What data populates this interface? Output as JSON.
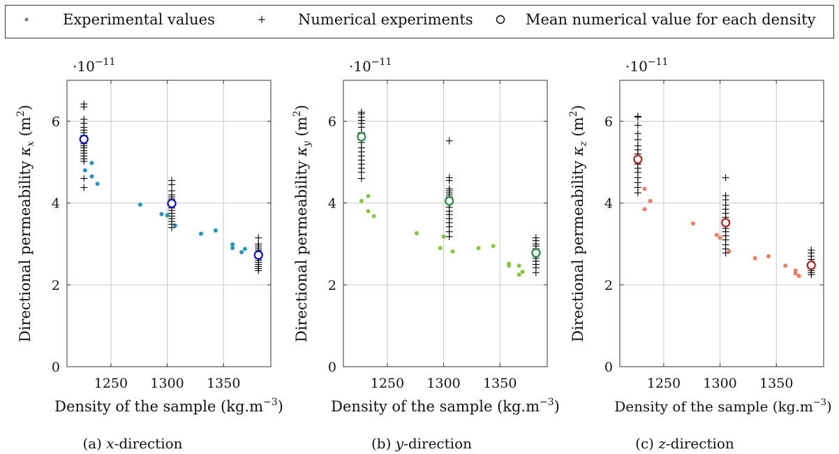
{
  "legend": {
    "experimental": "Experimental values",
    "numerical": "Numerical experiments",
    "mean": "Mean numerical value for each density"
  },
  "colors": {
    "frame": "#333333",
    "grid": "#c8c8c8",
    "numerical": "#000000",
    "legend_dot": "#808080"
  },
  "chart_data": [
    {
      "type": "scatter",
      "panel": "(a)",
      "caption_prefix": "(a) ",
      "caption_var": "x",
      "caption_suffix": "-direction",
      "ylabel_text": "Directional permeability ",
      "ylabel_var": "κ",
      "ylabel_sub": "x",
      "ylabel_unit_open": " (m",
      "ylabel_unit_exp": "2",
      "ylabel_unit_close": ")",
      "xlabel_text": "Density of the sample (kg.m",
      "xlabel_exp": "−3",
      "xlabel_close": ")",
      "scale_base": "·10",
      "scale_exp": "−11",
      "xlim": [
        1211,
        1392
      ],
      "ylim": [
        0,
        7
      ],
      "xticks": [
        1250,
        1300,
        1350
      ],
      "yticks": [
        0,
        2,
        4,
        6
      ],
      "grid": true,
      "exp_color": "#1e96c0",
      "mean_color": "#1010c8",
      "experimental": [
        [
          1227,
          4.8
        ],
        [
          1233,
          4.98
        ],
        [
          1233,
          4.65
        ],
        [
          1238,
          4.47
        ],
        [
          1276,
          3.96
        ],
        [
          1295,
          3.73
        ],
        [
          1300,
          3.7
        ],
        [
          1307,
          3.45
        ],
        [
          1330,
          3.25
        ],
        [
          1343,
          3.33
        ],
        [
          1358,
          2.99
        ],
        [
          1358,
          2.9
        ],
        [
          1366,
          2.8
        ],
        [
          1369,
          2.88
        ],
        [
          1382,
          2.8
        ],
        [
          1382,
          2.65
        ]
      ],
      "numerical": [
        [
          1226,
          6.42
        ],
        [
          1226,
          6.35
        ],
        [
          1226,
          6.05
        ],
        [
          1226,
          5.95
        ],
        [
          1226,
          5.85
        ],
        [
          1226,
          5.78
        ],
        [
          1226,
          5.72
        ],
        [
          1226,
          5.65
        ],
        [
          1226,
          5.6
        ],
        [
          1226,
          5.55
        ],
        [
          1226,
          5.5
        ],
        [
          1226,
          5.45
        ],
        [
          1226,
          5.4
        ],
        [
          1226,
          5.35
        ],
        [
          1226,
          5.28
        ],
        [
          1226,
          5.22
        ],
        [
          1226,
          5.15
        ],
        [
          1226,
          5.08
        ],
        [
          1226,
          5.02
        ],
        [
          1226,
          4.6
        ],
        [
          1226,
          4.38
        ],
        [
          1304,
          4.55
        ],
        [
          1304,
          4.45
        ],
        [
          1304,
          4.3
        ],
        [
          1304,
          4.2
        ],
        [
          1304,
          4.15
        ],
        [
          1304,
          4.1
        ],
        [
          1304,
          4.05
        ],
        [
          1304,
          4.0
        ],
        [
          1304,
          3.95
        ],
        [
          1304,
          3.88
        ],
        [
          1304,
          3.82
        ],
        [
          1304,
          3.75
        ],
        [
          1304,
          3.68
        ],
        [
          1304,
          3.62
        ],
        [
          1304,
          3.55
        ],
        [
          1304,
          3.48
        ],
        [
          1304,
          3.4
        ],
        [
          1381,
          3.15
        ],
        [
          1381,
          3.0
        ],
        [
          1381,
          2.95
        ],
        [
          1381,
          2.9
        ],
        [
          1381,
          2.85
        ],
        [
          1381,
          2.8
        ],
        [
          1381,
          2.75
        ],
        [
          1381,
          2.7
        ],
        [
          1381,
          2.65
        ],
        [
          1381,
          2.6
        ],
        [
          1381,
          2.55
        ],
        [
          1381,
          2.5
        ],
        [
          1381,
          2.45
        ],
        [
          1381,
          2.4
        ],
        [
          1381,
          2.35
        ]
      ],
      "means": [
        [
          1226,
          5.56
        ],
        [
          1304,
          3.99
        ],
        [
          1381,
          2.73
        ]
      ]
    },
    {
      "type": "scatter",
      "panel": "(b)",
      "caption_prefix": "(b) ",
      "caption_var": "y",
      "caption_suffix": "-direction",
      "ylabel_text": "Directional permeability ",
      "ylabel_var": "κ",
      "ylabel_sub": "y",
      "ylabel_unit_open": " (m",
      "ylabel_unit_exp": "2",
      "ylabel_unit_close": ")",
      "xlabel_text": "Density of the sample (kg.m",
      "xlabel_exp": "−3",
      "xlabel_close": ")",
      "scale_base": "·10",
      "scale_exp": "−11",
      "xlim": [
        1211,
        1392
      ],
      "ylim": [
        0,
        7
      ],
      "xticks": [
        1250,
        1300,
        1350
      ],
      "yticks": [
        0,
        2,
        4,
        6
      ],
      "grid": true,
      "exp_color": "#86c83c",
      "mean_color": "#1e8c3c",
      "experimental": [
        [
          1227,
          4.05
        ],
        [
          1233,
          4.17
        ],
        [
          1233,
          3.8
        ],
        [
          1238,
          3.68
        ],
        [
          1276,
          3.26
        ],
        [
          1297,
          2.9
        ],
        [
          1300,
          3.18
        ],
        [
          1308,
          2.82
        ],
        [
          1331,
          2.9
        ],
        [
          1344,
          2.95
        ],
        [
          1358,
          2.52
        ],
        [
          1358,
          2.47
        ],
        [
          1367,
          2.47
        ],
        [
          1367,
          2.25
        ],
        [
          1370,
          2.32
        ],
        [
          1382,
          2.79
        ]
      ],
      "numerical": [
        [
          1227,
          6.22
        ],
        [
          1227,
          6.18
        ],
        [
          1227,
          6.1
        ],
        [
          1227,
          6.02
        ],
        [
          1227,
          5.95
        ],
        [
          1227,
          5.85
        ],
        [
          1227,
          5.72
        ],
        [
          1227,
          5.6
        ],
        [
          1227,
          5.48
        ],
        [
          1227,
          5.35
        ],
        [
          1227,
          5.25
        ],
        [
          1227,
          5.15
        ],
        [
          1227,
          5.05
        ],
        [
          1227,
          4.95
        ],
        [
          1227,
          4.85
        ],
        [
          1227,
          4.75
        ],
        [
          1227,
          4.6
        ],
        [
          1305,
          5.52
        ],
        [
          1305,
          4.62
        ],
        [
          1305,
          4.55
        ],
        [
          1305,
          4.35
        ],
        [
          1305,
          4.3
        ],
        [
          1305,
          4.25
        ],
        [
          1305,
          4.2
        ],
        [
          1305,
          4.15
        ],
        [
          1305,
          4.08
        ],
        [
          1305,
          4.0
        ],
        [
          1305,
          3.9
        ],
        [
          1305,
          3.8
        ],
        [
          1305,
          3.72
        ],
        [
          1305,
          3.62
        ],
        [
          1305,
          3.52
        ],
        [
          1305,
          3.42
        ],
        [
          1305,
          3.3
        ],
        [
          1305,
          3.18
        ],
        [
          1382,
          3.15
        ],
        [
          1382,
          3.08
        ],
        [
          1382,
          3.0
        ],
        [
          1382,
          2.95
        ],
        [
          1382,
          2.88
        ],
        [
          1382,
          2.8
        ],
        [
          1382,
          2.72
        ],
        [
          1382,
          2.65
        ],
        [
          1382,
          2.58
        ],
        [
          1382,
          2.5
        ],
        [
          1382,
          2.42
        ],
        [
          1382,
          2.3
        ]
      ],
      "means": [
        [
          1227,
          5.62
        ],
        [
          1305,
          4.05
        ],
        [
          1382,
          2.78
        ]
      ]
    },
    {
      "type": "scatter",
      "panel": "(c)",
      "caption_prefix": "(c) ",
      "caption_var": "z",
      "caption_suffix": "-direction",
      "ylabel_text": "Directional permeability ",
      "ylabel_var": "κ",
      "ylabel_sub": "z",
      "ylabel_unit_open": " (m",
      "ylabel_unit_exp": "2",
      "ylabel_unit_close": ")",
      "xlabel_text": "Density of the sample (kg.m",
      "xlabel_exp": "−3",
      "xlabel_close": ")",
      "scale_base": "·10",
      "scale_exp": "−11",
      "xlim": [
        1211,
        1392
      ],
      "ylim": [
        0,
        7
      ],
      "xticks": [
        1250,
        1300,
        1350
      ],
      "yticks": [
        0,
        2,
        4,
        6
      ],
      "grid": true,
      "exp_color": "#f27d5c",
      "mean_color": "#b41e1e",
      "experimental": [
        [
          1227,
          5.1
        ],
        [
          1233,
          4.35
        ],
        [
          1233,
          3.85
        ],
        [
          1238,
          4.05
        ],
        [
          1276,
          3.5
        ],
        [
          1297,
          3.22
        ],
        [
          1300,
          3.15
        ],
        [
          1308,
          2.82
        ],
        [
          1331,
          2.65
        ],
        [
          1343,
          2.7
        ],
        [
          1358,
          2.47
        ],
        [
          1367,
          2.35
        ],
        [
          1367,
          2.28
        ],
        [
          1370,
          2.22
        ],
        [
          1382,
          2.55
        ],
        [
          1382,
          2.45
        ]
      ],
      "numerical": [
        [
          1227,
          6.12
        ],
        [
          1227,
          6.1
        ],
        [
          1227,
          5.9
        ],
        [
          1227,
          5.7
        ],
        [
          1227,
          5.55
        ],
        [
          1227,
          5.4
        ],
        [
          1227,
          5.3
        ],
        [
          1227,
          5.2
        ],
        [
          1227,
          5.12
        ],
        [
          1227,
          5.05
        ],
        [
          1227,
          4.95
        ],
        [
          1227,
          4.85
        ],
        [
          1227,
          4.75
        ],
        [
          1227,
          4.62
        ],
        [
          1227,
          4.5
        ],
        [
          1227,
          4.38
        ],
        [
          1227,
          4.25
        ],
        [
          1305,
          4.62
        ],
        [
          1305,
          4.18
        ],
        [
          1305,
          4.08
        ],
        [
          1305,
          3.95
        ],
        [
          1305,
          3.85
        ],
        [
          1305,
          3.75
        ],
        [
          1305,
          3.65
        ],
        [
          1305,
          3.55
        ],
        [
          1305,
          3.45
        ],
        [
          1305,
          3.38
        ],
        [
          1305,
          3.3
        ],
        [
          1305,
          3.2
        ],
        [
          1305,
          3.1
        ],
        [
          1305,
          2.98
        ],
        [
          1305,
          2.88
        ],
        [
          1305,
          2.78
        ],
        [
          1381,
          2.85
        ],
        [
          1381,
          2.78
        ],
        [
          1381,
          2.7
        ],
        [
          1381,
          2.62
        ],
        [
          1381,
          2.55
        ],
        [
          1381,
          2.5
        ],
        [
          1381,
          2.45
        ],
        [
          1381,
          2.4
        ],
        [
          1381,
          2.35
        ],
        [
          1381,
          2.3
        ],
        [
          1381,
          2.25
        ]
      ],
      "means": [
        [
          1227,
          5.07
        ],
        [
          1305,
          3.52
        ],
        [
          1381,
          2.48
        ]
      ]
    }
  ]
}
